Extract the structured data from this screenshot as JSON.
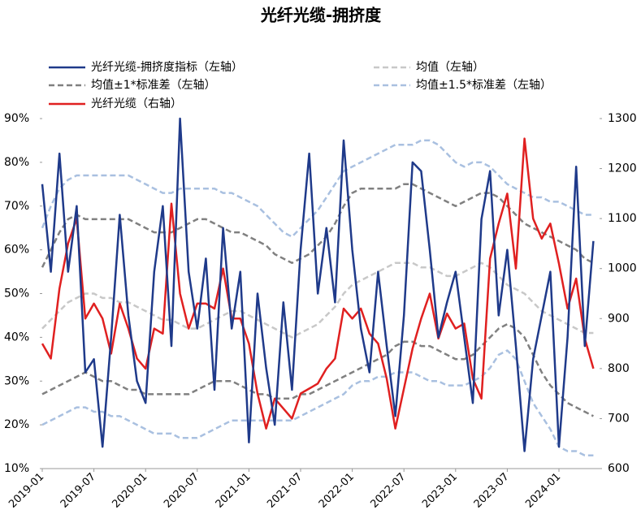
{
  "chart_data": {
    "type": "line",
    "title": "光纤光缆-拥挤度",
    "x": [
      "2019-01",
      "2019-02",
      "2019-03",
      "2019-04",
      "2019-05",
      "2019-06",
      "2019-07",
      "2019-08",
      "2019-09",
      "2019-10",
      "2019-11",
      "2019-12",
      "2020-01",
      "2020-02",
      "2020-03",
      "2020-04",
      "2020-05",
      "2020-06",
      "2020-07",
      "2020-08",
      "2020-09",
      "2020-10",
      "2020-11",
      "2020-12",
      "2021-01",
      "2021-02",
      "2021-03",
      "2021-04",
      "2021-05",
      "2021-06",
      "2021-07",
      "2021-08",
      "2021-09",
      "2021-10",
      "2021-11",
      "2021-12",
      "2022-01",
      "2022-02",
      "2022-03",
      "2022-04",
      "2022-05",
      "2022-06",
      "2022-07",
      "2022-08",
      "2022-09",
      "2022-10",
      "2022-11",
      "2022-12",
      "2023-01",
      "2023-02",
      "2023-03",
      "2023-04",
      "2023-05",
      "2023-06",
      "2023-07",
      "2023-08",
      "2023-09",
      "2023-10",
      "2023-11",
      "2023-12",
      "2024-01",
      "2024-02",
      "2024-03",
      "2024-04",
      "2024-05"
    ],
    "xticks": [
      "2019-01",
      "2019-07",
      "2020-01",
      "2020-07",
      "2021-01",
      "2021-07",
      "2022-01",
      "2022-07",
      "2023-01",
      "2023-07",
      "2024-01"
    ],
    "ylim": [
      10,
      90
    ],
    "yticks": [
      {
        "value": 10,
        "label": "10%"
      },
      {
        "value": 20,
        "label": "20%"
      },
      {
        "value": 30,
        "label": "30%"
      },
      {
        "value": 40,
        "label": "40%"
      },
      {
        "value": 50,
        "label": "50%"
      },
      {
        "value": 60,
        "label": "60%"
      },
      {
        "value": 70,
        "label": "70%"
      },
      {
        "value": 80,
        "label": "80%"
      },
      {
        "value": 90,
        "label": "90%"
      }
    ],
    "y2lim": [
      600,
      1300
    ],
    "y2ticks": [
      600,
      700,
      800,
      900,
      1000,
      1100,
      1200,
      1300
    ],
    "series": [
      {
        "name": "光纤光缆-拥挤度指标（左轴）",
        "color": "#1f3a8a",
        "dashed": false,
        "values": [
          75,
          55,
          82,
          55,
          70,
          32,
          35,
          15,
          40,
          68,
          45,
          30,
          25,
          55,
          70,
          38,
          90,
          55,
          42,
          58,
          28,
          65,
          42,
          55,
          16,
          50,
          33,
          20,
          48,
          28,
          60,
          82,
          50,
          65,
          48,
          85,
          60,
          42,
          32,
          55,
          38,
          22,
          45,
          80,
          78,
          60,
          40,
          48,
          55,
          40,
          25,
          67,
          78,
          45,
          60,
          38,
          14,
          35,
          45,
          55,
          15,
          40,
          79,
          38,
          62
        ]
      },
      {
        "name": "均值（左轴）",
        "color": "#c8c8c8",
        "dashed": true,
        "values": [
          42,
          44,
          46,
          48,
          49,
          50,
          50,
          49,
          49,
          48,
          48,
          47,
          46,
          45,
          44,
          44,
          43,
          42,
          42,
          43,
          44,
          45,
          46,
          46,
          45,
          44,
          43,
          42,
          41,
          40,
          41,
          42,
          43,
          45,
          47,
          50,
          52,
          53,
          54,
          55,
          56,
          57,
          57,
          57,
          56,
          56,
          55,
          54,
          54,
          55,
          56,
          57,
          56,
          54,
          52,
          51,
          50,
          48,
          46,
          45,
          44,
          43,
          42,
          41,
          41
        ]
      },
      {
        "name": "均值±1*标准差（左轴）",
        "color": "#808080",
        "dashed": true,
        "values": [
          56,
          60,
          64,
          67,
          68,
          67,
          67,
          67,
          67,
          67,
          67,
          66,
          65,
          64,
          64,
          64,
          65,
          66,
          67,
          67,
          66,
          65,
          64,
          64,
          63,
          62,
          61,
          59,
          58,
          57,
          58,
          59,
          61,
          63,
          66,
          70,
          73,
          74,
          74,
          74,
          74,
          74,
          75,
          75,
          74,
          73,
          72,
          71,
          70,
          71,
          72,
          73,
          73,
          72,
          70,
          68,
          66,
          65,
          64,
          63,
          62,
          61,
          60,
          58,
          57
        ],
        "lower": [
          27,
          28,
          29,
          30,
          31,
          32,
          31,
          30,
          30,
          29,
          28,
          28,
          27,
          27,
          27,
          27,
          27,
          27,
          28,
          29,
          30,
          30,
          30,
          29,
          28,
          27,
          27,
          26,
          26,
          26,
          27,
          27,
          28,
          29,
          30,
          31,
          32,
          33,
          34,
          35,
          36,
          38,
          39,
          39,
          38,
          38,
          37,
          36,
          35,
          35,
          36,
          38,
          40,
          42,
          43,
          42,
          40,
          36,
          32,
          29,
          27,
          25,
          24,
          23,
          22
        ]
      },
      {
        "name": "均值±1.5*标准差（左轴）",
        "color": "#a9c0e0",
        "dashed": true,
        "values": [
          65,
          70,
          74,
          76,
          77,
          77,
          77,
          77,
          77,
          77,
          77,
          76,
          75,
          74,
          73,
          73,
          74,
          74,
          74,
          74,
          74,
          73,
          73,
          72,
          71,
          70,
          68,
          66,
          64,
          63,
          65,
          67,
          69,
          72,
          75,
          78,
          79,
          80,
          81,
          82,
          83,
          84,
          84,
          84,
          85,
          85,
          84,
          82,
          80,
          79,
          80,
          80,
          79,
          77,
          75,
          74,
          73,
          72,
          72,
          71,
          71,
          70,
          69,
          68,
          68
        ],
        "lower": [
          20,
          21,
          22,
          23,
          24,
          24,
          23,
          23,
          22,
          22,
          21,
          20,
          19,
          18,
          18,
          18,
          17,
          17,
          17,
          18,
          19,
          20,
          21,
          21,
          21,
          21,
          21,
          21,
          21,
          21,
          22,
          23,
          24,
          25,
          26,
          27,
          29,
          30,
          30,
          31,
          31,
          32,
          32,
          32,
          31,
          30,
          30,
          29,
          29,
          29,
          30,
          31,
          33,
          36,
          37,
          35,
          30,
          25,
          22,
          19,
          15,
          14,
          14,
          13,
          13
        ]
      },
      {
        "name": "光纤光缆（右轴）",
        "color": "#e02020",
        "dashed": false,
        "axis": "y2",
        "values": [
          850,
          820,
          960,
          1050,
          1100,
          900,
          930,
          900,
          830,
          930,
          880,
          820,
          800,
          880,
          870,
          1130,
          950,
          880,
          930,
          930,
          920,
          1000,
          900,
          900,
          850,
          750,
          680,
          740,
          720,
          700,
          750,
          760,
          770,
          800,
          820,
          920,
          900,
          920,
          870,
          850,
          780,
          680,
          760,
          840,
          900,
          950,
          860,
          910,
          880,
          890,
          780,
          740,
          1020,
          1090,
          1150,
          1000,
          1260,
          1100,
          1060,
          1090,
          1010,
          920,
          980,
          860,
          800
        ]
      }
    ]
  }
}
